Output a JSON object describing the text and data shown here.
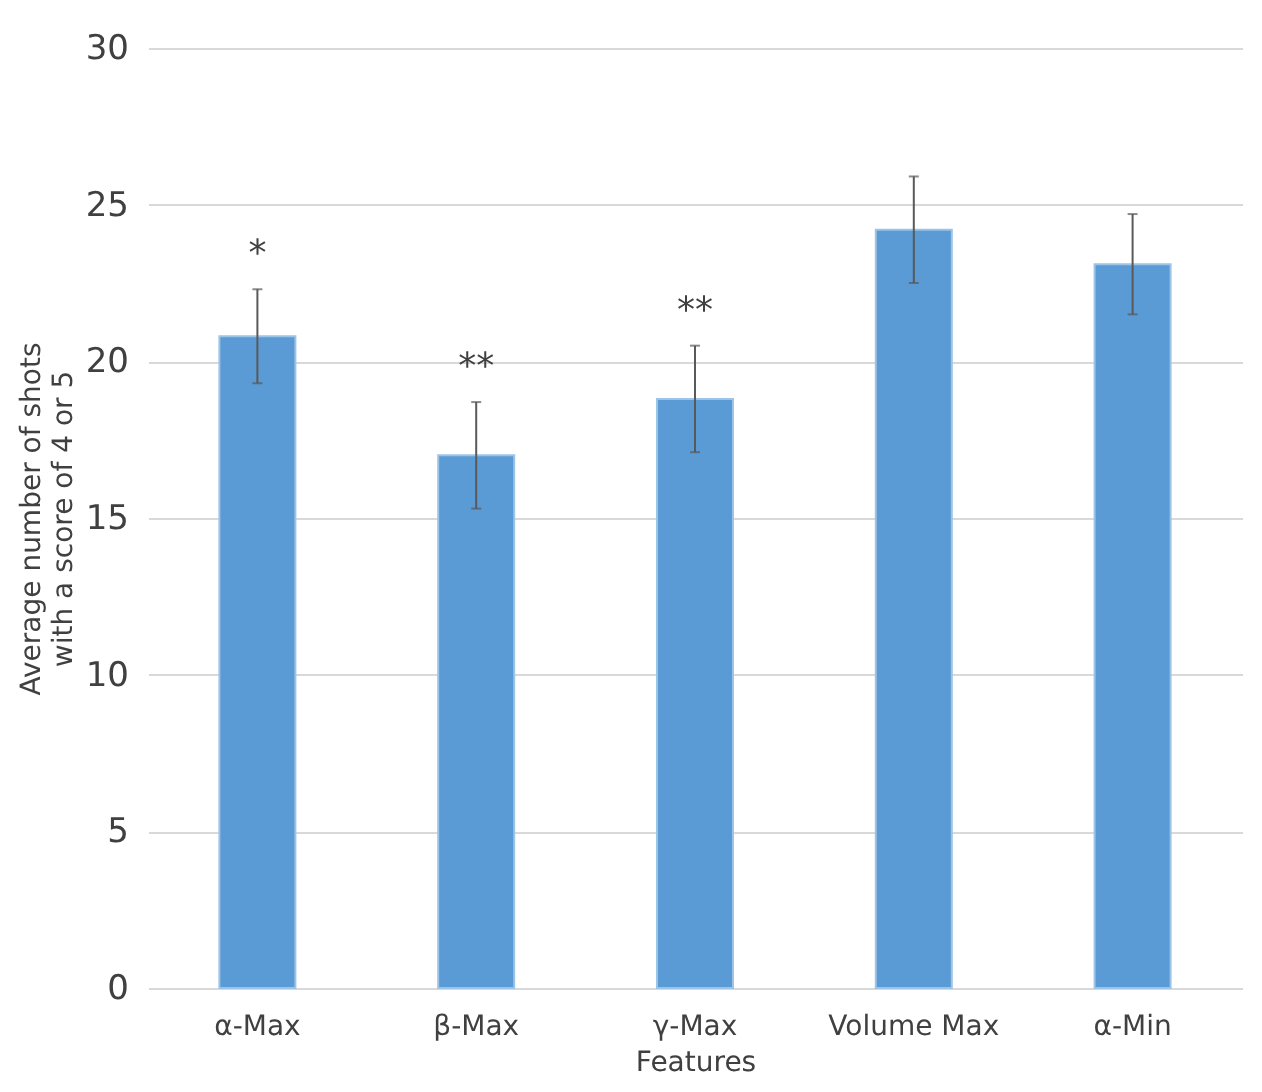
{
  "chart_data": {
    "type": "bar",
    "xlabel": "Features",
    "ylabel": "Average number of shots\nwith a score of 4 or 5",
    "categories": [
      "α-Max",
      "β-Max",
      "γ-Max",
      "Volume Max",
      "α-Min"
    ],
    "series": [
      {
        "color": "#5b9bd5",
        "values": [
          20.8,
          17.0,
          18.8,
          24.2,
          23.1
        ],
        "errors": [
          1.5,
          1.7,
          1.7,
          1.7,
          1.6
        ]
      }
    ],
    "ylim": [
      0,
      30
    ],
    "yticks": [
      0,
      5,
      10,
      15,
      20,
      25,
      30
    ],
    "grid": "y",
    "annotations": [
      "*",
      "**",
      "**"
    ]
  }
}
